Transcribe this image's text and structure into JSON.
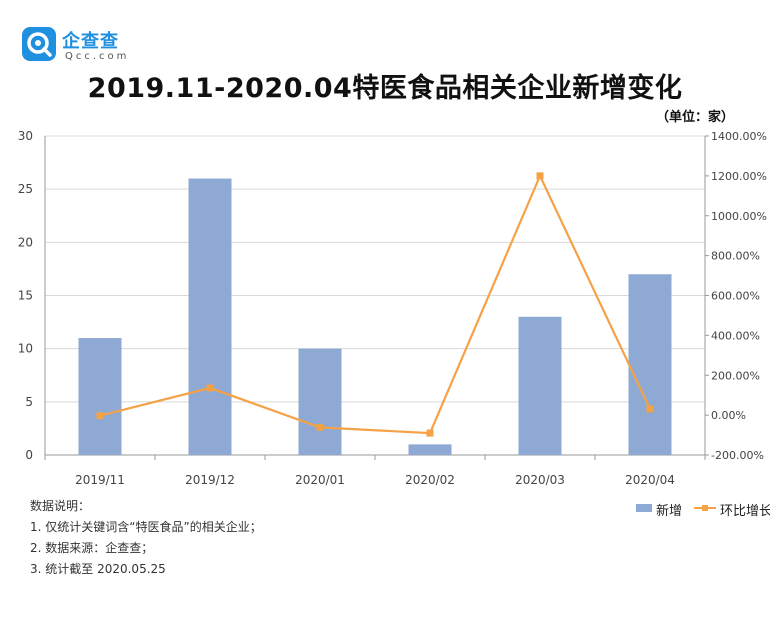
{
  "brand": {
    "name": "企查查",
    "domain": "Qcc.com",
    "icon": "qcc-logo-icon"
  },
  "title": "2019.11-2020.04特医食品相关企业新增变化",
  "unit_label": "（单位：家）",
  "chart_data": {
    "type": "bar",
    "categories": [
      "2019/11",
      "2019/12",
      "2020/01",
      "2020/02",
      "2020/03",
      "2020/04"
    ],
    "series": [
      {
        "name": "新增",
        "type": "bar",
        "axis": "left",
        "color": "#8ea9d3",
        "values": [
          11,
          26,
          10,
          1,
          13,
          17
        ]
      },
      {
        "name": "环比增长",
        "type": "line",
        "axis": "right",
        "color": "#f5a146",
        "values": [
          -0.0278,
          1.3636,
          -0.6154,
          -0.9,
          12.0,
          0.3077
        ]
      }
    ],
    "left_axis": {
      "ylim": [
        0,
        30
      ],
      "ticks": [
        "0",
        "5",
        "10",
        "15",
        "20",
        "25",
        "30"
      ]
    },
    "right_axis": {
      "ylim": [
        -2,
        14
      ],
      "ticks": [
        "-200.00%",
        "0.00%",
        "200.00%",
        "400.00%",
        "600.00%",
        "800.00%",
        "1000.00%",
        "1200.00%",
        "1400.00%"
      ]
    },
    "grid": true,
    "legend_position": "bottom-right"
  },
  "notes": {
    "heading": "数据说明：",
    "items": [
      "1. 仅统计关键词含“特医食品”的相关企业；",
      "2. 数据来源：企查查；",
      "3. 统计截至 2020.05.25"
    ]
  }
}
